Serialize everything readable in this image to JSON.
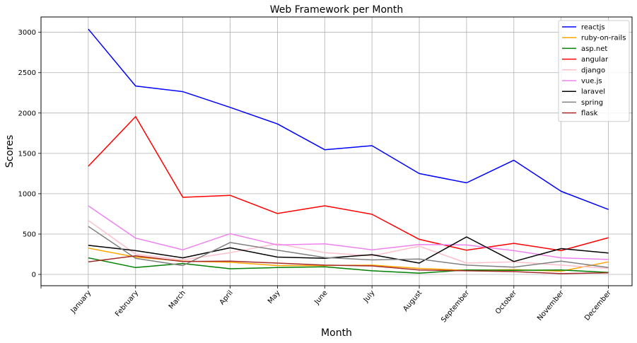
{
  "chart_data": {
    "type": "line",
    "title": "Web Framework per Month",
    "xlabel": "Month",
    "ylabel": "Scores",
    "categories": [
      "January",
      "February",
      "March",
      "April",
      "May",
      "June",
      "July",
      "August",
      "September",
      "October",
      "November",
      "December"
    ],
    "yticks": [
      0,
      500,
      1000,
      1500,
      2000,
      2500,
      3000
    ],
    "ylim": [
      -140,
      3190
    ],
    "grid": true,
    "legend_position": "top-right",
    "series": [
      {
        "name": "reactjs",
        "color": "#0000ff",
        "values": [
          3040,
          2335,
          2265,
          2070,
          1865,
          1545,
          1595,
          1250,
          1135,
          1415,
          1030,
          805
        ]
      },
      {
        "name": "ruby-on-rails",
        "color": "#ffa500",
        "values": [
          325,
          215,
          165,
          150,
          110,
          110,
          115,
          75,
          50,
          60,
          40,
          155
        ]
      },
      {
        "name": "asp.net",
        "color": "#008000",
        "values": [
          205,
          85,
          135,
          70,
          85,
          95,
          45,
          15,
          55,
          50,
          55,
          25
        ]
      },
      {
        "name": "angular",
        "color": "#ff0000",
        "values": [
          1340,
          1955,
          955,
          980,
          755,
          850,
          745,
          435,
          300,
          385,
          295,
          455
        ]
      },
      {
        "name": "django",
        "color": "#ffc0cb",
        "values": [
          670,
          250,
          180,
          270,
          380,
          270,
          230,
          350,
          140,
          155,
          115,
          75
        ]
      },
      {
        "name": "vue.js",
        "color": "#ee82ee",
        "values": [
          850,
          450,
          305,
          505,
          365,
          380,
          305,
          370,
          365,
          295,
          205,
          185
        ]
      },
      {
        "name": "laravel",
        "color": "#000000",
        "values": [
          360,
          295,
          205,
          330,
          215,
          200,
          245,
          140,
          465,
          160,
          320,
          265
        ]
      },
      {
        "name": "spring",
        "color": "#808080",
        "values": [
          595,
          200,
          110,
          395,
          300,
          210,
          180,
          190,
          115,
          90,
          165,
          85
        ]
      },
      {
        "name": "flask",
        "color": "#a52a2a",
        "values": [
          155,
          230,
          160,
          165,
          140,
          115,
          105,
          55,
          45,
          35,
          10,
          20
        ]
      }
    ]
  }
}
